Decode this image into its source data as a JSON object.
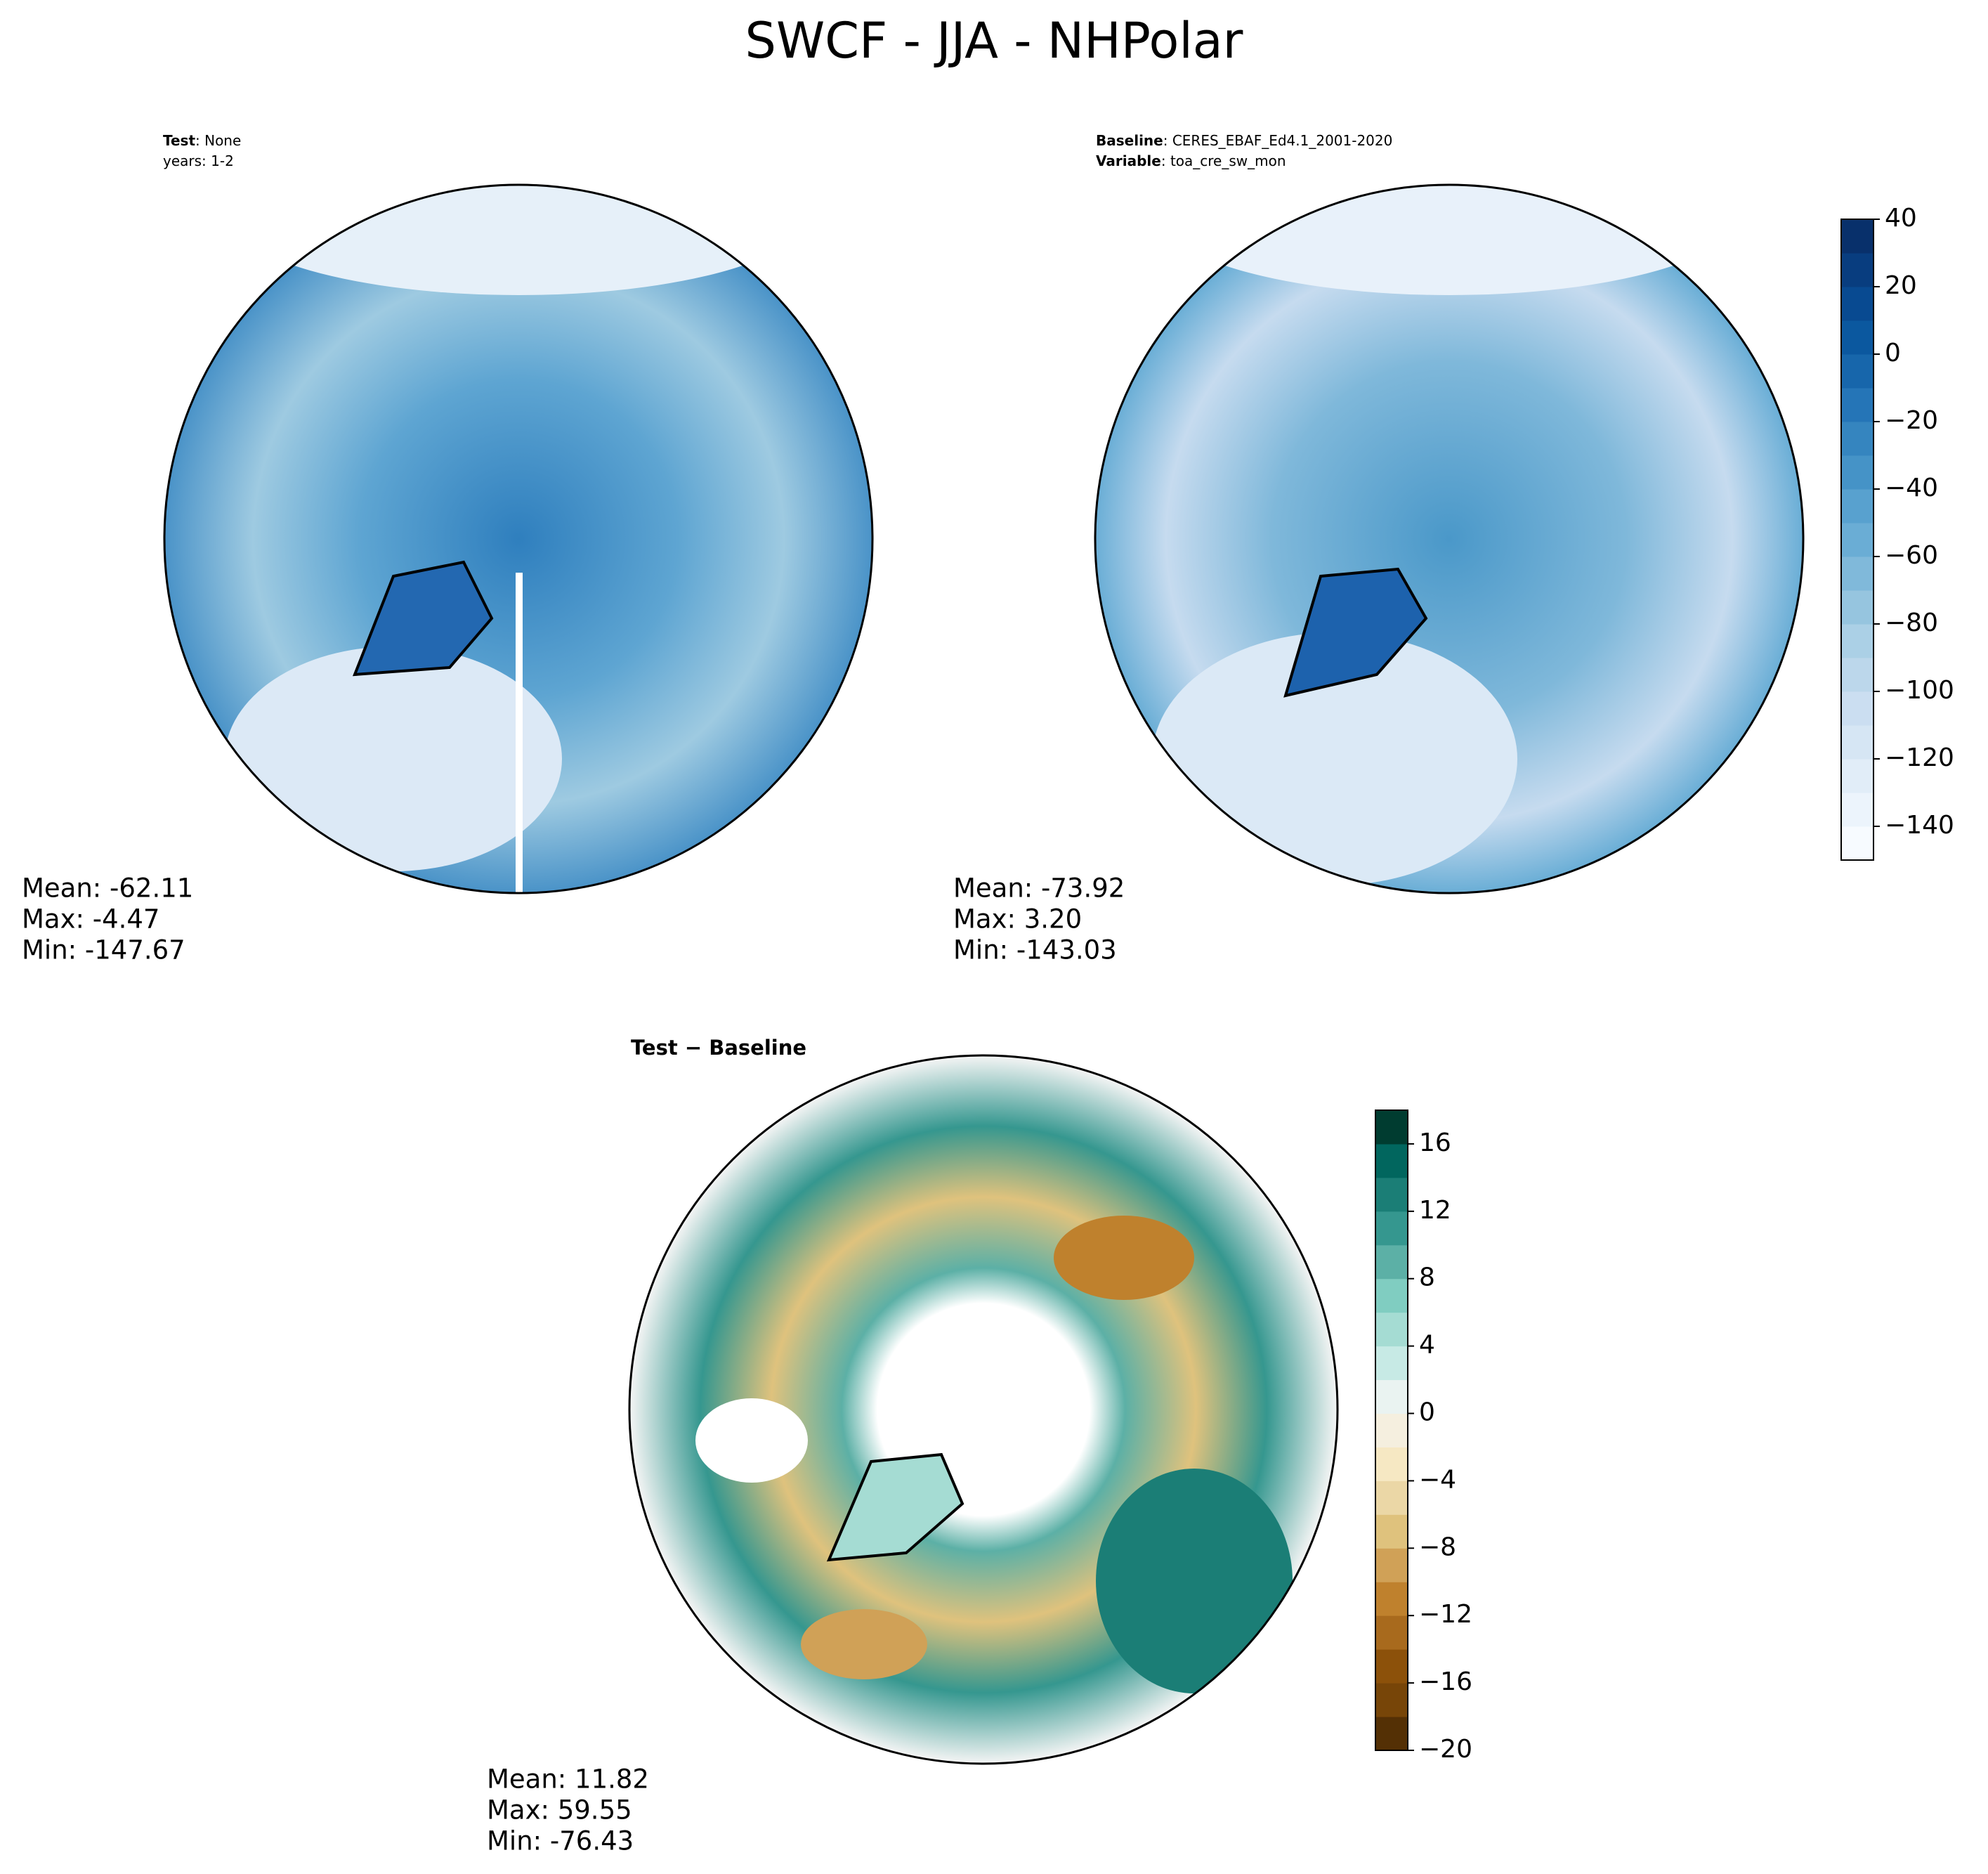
{
  "title": "SWCF - JJA - NHPolar",
  "panels": [
    {
      "header": [
        {
          "bold": "Test",
          "text": ": None"
        },
        {
          "text": "years: 1-2"
        }
      ],
      "stats": [
        "Mean: -62.11",
        "Max: -4.47",
        "Min: -147.67"
      ]
    },
    {
      "header": [
        {
          "bold": "Baseline",
          "text": ": CERES_EBAF_Ed4.1_2001-2020"
        },
        {
          "bold": "Variable",
          "text": ": toa_cre_sw_mon"
        }
      ],
      "stats": [
        "Mean: -73.92",
        "Max:  3.20",
        "Min: -143.03"
      ]
    },
    {
      "header": [
        {
          "bold": "Test − Baseline"
        }
      ],
      "stats": [
        "Mean: 11.82",
        "Max: 59.55",
        "Min: -76.43"
      ]
    }
  ],
  "colorbars": [
    {
      "lim": [
        -150,
        40
      ],
      "ticks": [
        {
          "value": -140,
          "label": "−140"
        },
        {
          "value": -120,
          "label": "−120"
        },
        {
          "value": -100,
          "label": "−100"
        },
        {
          "value": -80,
          "label": "−80"
        },
        {
          "value": -60,
          "label": "−60"
        },
        {
          "value": -40,
          "label": "−40"
        },
        {
          "value": -20,
          "label": "−20"
        },
        0,
        20,
        40
      ],
      "colors": [
        "#f7fbff",
        "#ecf4fc",
        "#e1edf8",
        "#d6e6f4",
        "#cbdef1",
        "#bcd7eb",
        "#abd0e6",
        "#96c5df",
        "#80b9da",
        "#6aadd5",
        "#58a1cf",
        "#4593c7",
        "#3585bf",
        "#2575b7",
        "#1766ab",
        "#0b589f",
        "#084a91",
        "#083d7f",
        "#08306b"
      ]
    },
    {
      "lim": [
        -20,
        18
      ],
      "ticks": [
        {
          "value": -20,
          "label": "−20"
        },
        {
          "value": -16,
          "label": "−16"
        },
        {
          "value": -12,
          "label": "−12"
        },
        {
          "value": -8,
          "label": "−8"
        },
        {
          "value": -4,
          "label": "−4"
        },
        0,
        4,
        8,
        12,
        16
      ],
      "colors": [
        "#543005",
        "#774508",
        "#8c510a",
        "#a86a1d",
        "#bf812d",
        "#d0a157",
        "#dfc27d",
        "#ebd7a6",
        "#f6e8c3",
        "#f5efdf",
        "#eaf3f1",
        "#c7eae5",
        "#a5dcd3",
        "#80cdc1",
        "#5cb0a6",
        "#35978f",
        "#1b7e76",
        "#01665e",
        "#003c30"
      ]
    }
  ]
}
